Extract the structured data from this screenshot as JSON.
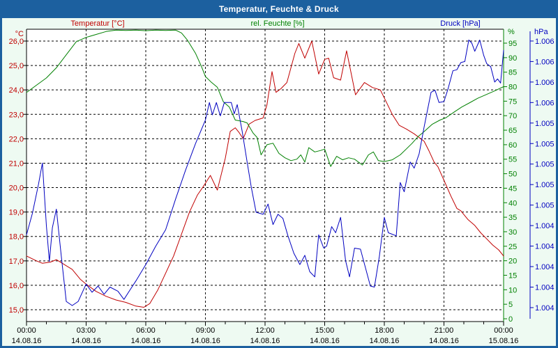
{
  "window": {
    "title": "Temperatur, Feuchte & Druck"
  },
  "colors": {
    "frame": "#1c609f",
    "background": "#eefaf2",
    "plot_background": "#ffffff",
    "grid": "#000000",
    "temperature": "#c00000",
    "humidity": "#008000",
    "pressure": "#0000c0",
    "title_text": "#ffffff",
    "axis_text": "#000000"
  },
  "header_labels": [
    {
      "id": "temperature",
      "label": "Temperatur [°C]"
    },
    {
      "id": "humidity",
      "label": "rel. Feuchte [%]"
    },
    {
      "id": "pressure",
      "label": "Druck [hPa]"
    }
  ],
  "axes": {
    "temperature": {
      "unit": "°C",
      "tick_labels": [
        "26,0",
        "25,0",
        "24,0",
        "23,0",
        "22,0",
        "21,0",
        "20,0",
        "19,0",
        "18,0",
        "17,0",
        "16,0",
        "15,0"
      ],
      "tick_values": [
        26,
        25,
        24,
        23,
        22,
        21,
        20,
        19,
        18,
        17,
        16,
        15
      ]
    },
    "humidity": {
      "unit": "%",
      "tick_labels": [
        "95",
        "90",
        "85",
        "80",
        "75",
        "70",
        "65",
        "60",
        "55",
        "50",
        "45",
        "40",
        "35",
        "30",
        "25",
        "20",
        "15",
        "10",
        "5",
        "0"
      ],
      "tick_values": [
        95,
        90,
        85,
        80,
        75,
        70,
        65,
        60,
        55,
        50,
        45,
        40,
        35,
        30,
        25,
        20,
        15,
        10,
        5,
        0
      ]
    },
    "pressure": {
      "unit": "hPa",
      "tick_labels": [
        "1.006",
        "1.006",
        "1.006",
        "1.006",
        "1.005",
        "1.005",
        "1.005",
        "1.005",
        "1.005",
        "1.004",
        "1.004",
        "1.004",
        "1.004",
        "1.004"
      ],
      "tick_values": [
        1006.4,
        1006.2,
        1006.0,
        1005.8,
        1005.6,
        1005.4,
        1005.2,
        1005.0,
        1004.8,
        1004.6,
        1004.4,
        1004.2,
        1004.0,
        1003.8
      ]
    },
    "time": {
      "tick_hours": [
        0,
        3,
        6,
        9,
        12,
        15,
        18,
        21,
        24
      ],
      "tick_times": [
        "00:00",
        "03:00",
        "06:00",
        "09:00",
        "12:00",
        "15:00",
        "18:00",
        "21:00",
        "00:00"
      ],
      "tick_dates": [
        "14.08.16",
        "14.08.16",
        "14.08.16",
        "14.08.16",
        "14.08.16",
        "14.08.16",
        "14.08.16",
        "14.08.16",
        "15.08.16"
      ],
      "minor_tick_every_hours": 1
    }
  },
  "chart_data": {
    "type": "line",
    "title": "Temperatur, Feuchte & Druck",
    "x_unit": "hours",
    "x_range": [
      0,
      24
    ],
    "grid": true,
    "axis_ranges": {
      "temperature": [
        14.516,
        26.484
      ],
      "humidity": [
        -0.96,
        99.8
      ],
      "pressure": [
        1003.664,
        1006.515
      ]
    },
    "series": [
      {
        "name": "Temperatur",
        "unit": "°C",
        "axis": "temperature",
        "color": "#c00000",
        "points": [
          [
            0,
            17.2
          ],
          [
            0.5,
            17.0
          ],
          [
            0.8,
            16.9
          ],
          [
            1.2,
            16.95
          ],
          [
            1.5,
            17.05
          ],
          [
            1.9,
            16.85
          ],
          [
            2.3,
            16.65
          ],
          [
            2.7,
            16.25
          ],
          [
            3,
            16.05
          ],
          [
            3.5,
            15.75
          ],
          [
            4,
            15.55
          ],
          [
            4.5,
            15.4
          ],
          [
            5,
            15.3
          ],
          [
            5.5,
            15.15
          ],
          [
            5.9,
            15.1
          ],
          [
            6.2,
            15.25
          ],
          [
            6.6,
            15.8
          ],
          [
            7,
            16.5
          ],
          [
            7.4,
            17.2
          ],
          [
            7.8,
            18.1
          ],
          [
            8.2,
            19.0
          ],
          [
            8.6,
            19.7
          ],
          [
            8.9,
            20.05
          ],
          [
            9.25,
            20.5
          ],
          [
            9.6,
            19.9
          ],
          [
            10,
            21.2
          ],
          [
            10.25,
            22.3
          ],
          [
            10.5,
            22.45
          ],
          [
            10.7,
            22.25
          ],
          [
            10.9,
            22.0
          ],
          [
            11.2,
            22.6
          ],
          [
            11.5,
            22.75
          ],
          [
            11.9,
            22.85
          ],
          [
            12.1,
            23.4
          ],
          [
            12.35,
            24.75
          ],
          [
            12.55,
            23.9
          ],
          [
            12.8,
            24.05
          ],
          [
            13.1,
            24.3
          ],
          [
            13.5,
            25.5
          ],
          [
            13.7,
            25.9
          ],
          [
            14,
            25.3
          ],
          [
            14.35,
            26.0
          ],
          [
            14.7,
            24.65
          ],
          [
            15,
            25.25
          ],
          [
            15.2,
            25.3
          ],
          [
            15.45,
            24.5
          ],
          [
            15.8,
            24.4
          ],
          [
            16.1,
            25.6
          ],
          [
            16.55,
            23.8
          ],
          [
            17,
            24.3
          ],
          [
            17.4,
            24.1
          ],
          [
            17.8,
            24.0
          ],
          [
            18.1,
            23.5
          ],
          [
            18.4,
            23.0
          ],
          [
            18.75,
            22.55
          ],
          [
            19.1,
            22.4
          ],
          [
            19.5,
            22.2
          ],
          [
            20,
            21.9
          ],
          [
            20.25,
            21.5
          ],
          [
            20.5,
            21.05
          ],
          [
            20.7,
            20.85
          ],
          [
            21,
            20.3
          ],
          [
            21.35,
            19.65
          ],
          [
            21.65,
            19.15
          ],
          [
            21.85,
            19.05
          ],
          [
            22.2,
            18.7
          ],
          [
            22.55,
            18.45
          ],
          [
            22.85,
            18.15
          ],
          [
            23.15,
            17.9
          ],
          [
            23.45,
            17.65
          ],
          [
            23.75,
            17.45
          ],
          [
            24,
            17.2
          ]
        ]
      },
      {
        "name": "rel. Feuchte",
        "unit": "%",
        "axis": "humidity",
        "color": "#008000",
        "points": [
          [
            0,
            78
          ],
          [
            0.5,
            80.5
          ],
          [
            1,
            83
          ],
          [
            1.5,
            86.5
          ],
          [
            2,
            91
          ],
          [
            2.5,
            95.5
          ],
          [
            3,
            97
          ],
          [
            3.5,
            98
          ],
          [
            4,
            99
          ],
          [
            4.5,
            99.5
          ],
          [
            5,
            99.4
          ],
          [
            5.5,
            99.5
          ],
          [
            6,
            99.3
          ],
          [
            6.5,
            99.5
          ],
          [
            7,
            99.4
          ],
          [
            7.5,
            99.5
          ],
          [
            7.8,
            98.5
          ],
          [
            8.1,
            96
          ],
          [
            8.5,
            91.5
          ],
          [
            8.8,
            87
          ],
          [
            9,
            83.5
          ],
          [
            9.3,
            81.5
          ],
          [
            9.6,
            79.8
          ],
          [
            9.9,
            74.8
          ],
          [
            10.2,
            73
          ],
          [
            10.5,
            68.5
          ],
          [
            10.9,
            68
          ],
          [
            11.1,
            67.5
          ],
          [
            11.4,
            64
          ],
          [
            11.6,
            62.5
          ],
          [
            11.8,
            56.5
          ],
          [
            12.1,
            60
          ],
          [
            12.4,
            60.5
          ],
          [
            12.7,
            57
          ],
          [
            13,
            55.5
          ],
          [
            13.3,
            54.5
          ],
          [
            13.6,
            55
          ],
          [
            13.8,
            56.5
          ],
          [
            14,
            54
          ],
          [
            14.2,
            59
          ],
          [
            14.5,
            57.5
          ],
          [
            14.8,
            58
          ],
          [
            15,
            58.5
          ],
          [
            15.3,
            52.5
          ],
          [
            15.6,
            56
          ],
          [
            15.9,
            54.8
          ],
          [
            16.2,
            55.5
          ],
          [
            16.5,
            55
          ],
          [
            16.9,
            53
          ],
          [
            17.2,
            56.5
          ],
          [
            17.45,
            57.5
          ],
          [
            17.7,
            54.5
          ],
          [
            18,
            54.2
          ],
          [
            18.4,
            54.8
          ],
          [
            18.8,
            56.5
          ],
          [
            19.1,
            58.5
          ],
          [
            19.4,
            60.5
          ],
          [
            19.7,
            62.8
          ],
          [
            20,
            64.5
          ],
          [
            20.4,
            67
          ],
          [
            20.8,
            68.5
          ],
          [
            21.1,
            69.3
          ],
          [
            21.5,
            71.2
          ],
          [
            21.9,
            73
          ],
          [
            22.3,
            74.5
          ],
          [
            22.7,
            76
          ],
          [
            23.1,
            77.2
          ],
          [
            23.5,
            78.4
          ],
          [
            24,
            80
          ]
        ]
      },
      {
        "name": "Druck",
        "unit": "hPa",
        "axis": "pressure",
        "color": "#0000c0",
        "points": [
          [
            0,
            1004.51
          ],
          [
            0.3,
            1004.72
          ],
          [
            0.6,
            1005.0
          ],
          [
            0.8,
            1005.21
          ],
          [
            1.0,
            1004.6
          ],
          [
            1.15,
            1004.25
          ],
          [
            1.3,
            1004.58
          ],
          [
            1.5,
            1004.76
          ],
          [
            1.75,
            1004.3
          ],
          [
            2.0,
            1003.86
          ],
          [
            2.3,
            1003.82
          ],
          [
            2.6,
            1003.86
          ],
          [
            3.0,
            1004.03
          ],
          [
            3.3,
            1003.95
          ],
          [
            3.6,
            1004.01
          ],
          [
            3.9,
            1003.93
          ],
          [
            4.2,
            1004.0
          ],
          [
            4.6,
            1003.96
          ],
          [
            4.9,
            1003.88
          ],
          [
            5.2,
            1003.97
          ],
          [
            5.5,
            1004.06
          ],
          [
            6.0,
            1004.22
          ],
          [
            6.5,
            1004.4
          ],
          [
            7.0,
            1004.56
          ],
          [
            7.5,
            1004.86
          ],
          [
            8.0,
            1005.14
          ],
          [
            8.5,
            1005.4
          ],
          [
            9.0,
            1005.63
          ],
          [
            9.2,
            1005.8
          ],
          [
            9.35,
            1005.68
          ],
          [
            9.55,
            1005.8
          ],
          [
            9.75,
            1005.67
          ],
          [
            9.95,
            1005.8
          ],
          [
            10.3,
            1005.8
          ],
          [
            10.45,
            1005.69
          ],
          [
            10.6,
            1005.78
          ],
          [
            10.85,
            1005.52
          ],
          [
            11.1,
            1005.22
          ],
          [
            11.3,
            1004.98
          ],
          [
            11.55,
            1004.73
          ],
          [
            11.9,
            1004.71
          ],
          [
            12.15,
            1004.81
          ],
          [
            12.4,
            1004.61
          ],
          [
            12.65,
            1004.71
          ],
          [
            12.9,
            1004.67
          ],
          [
            13.15,
            1004.5
          ],
          [
            13.45,
            1004.33
          ],
          [
            13.75,
            1004.22
          ],
          [
            14.0,
            1004.31
          ],
          [
            14.25,
            1004.15
          ],
          [
            14.5,
            1004.1
          ],
          [
            14.7,
            1004.51
          ],
          [
            14.95,
            1004.38
          ],
          [
            15.1,
            1004.4
          ],
          [
            15.35,
            1004.59
          ],
          [
            15.55,
            1004.53
          ],
          [
            15.8,
            1004.68
          ],
          [
            16.05,
            1004.26
          ],
          [
            16.25,
            1004.1
          ],
          [
            16.5,
            1004.38
          ],
          [
            16.8,
            1004.37
          ],
          [
            17.05,
            1004.19
          ],
          [
            17.3,
            1004.01
          ],
          [
            17.5,
            1004.0
          ],
          [
            17.75,
            1004.3
          ],
          [
            18.0,
            1004.68
          ],
          [
            18.2,
            1004.53
          ],
          [
            18.6,
            1004.5
          ],
          [
            18.8,
            1005.02
          ],
          [
            19.0,
            1004.93
          ],
          [
            19.3,
            1005.22
          ],
          [
            19.5,
            1005.16
          ],
          [
            19.75,
            1005.3
          ],
          [
            20.0,
            1005.56
          ],
          [
            20.35,
            1005.9
          ],
          [
            20.55,
            1005.92
          ],
          [
            20.75,
            1005.8
          ],
          [
            21.0,
            1005.81
          ],
          [
            21.2,
            1005.93
          ],
          [
            21.45,
            1006.11
          ],
          [
            21.65,
            1006.12
          ],
          [
            21.85,
            1006.19
          ],
          [
            22.05,
            1006.2
          ],
          [
            22.25,
            1006.41
          ],
          [
            22.4,
            1006.38
          ],
          [
            22.55,
            1006.3
          ],
          [
            22.8,
            1006.41
          ],
          [
            23.0,
            1006.26
          ],
          [
            23.15,
            1006.18
          ],
          [
            23.35,
            1006.15
          ],
          [
            23.55,
            1006.0
          ],
          [
            23.7,
            1006.03
          ],
          [
            23.85,
            1005.99
          ],
          [
            24,
            1006.31
          ]
        ]
      }
    ]
  }
}
